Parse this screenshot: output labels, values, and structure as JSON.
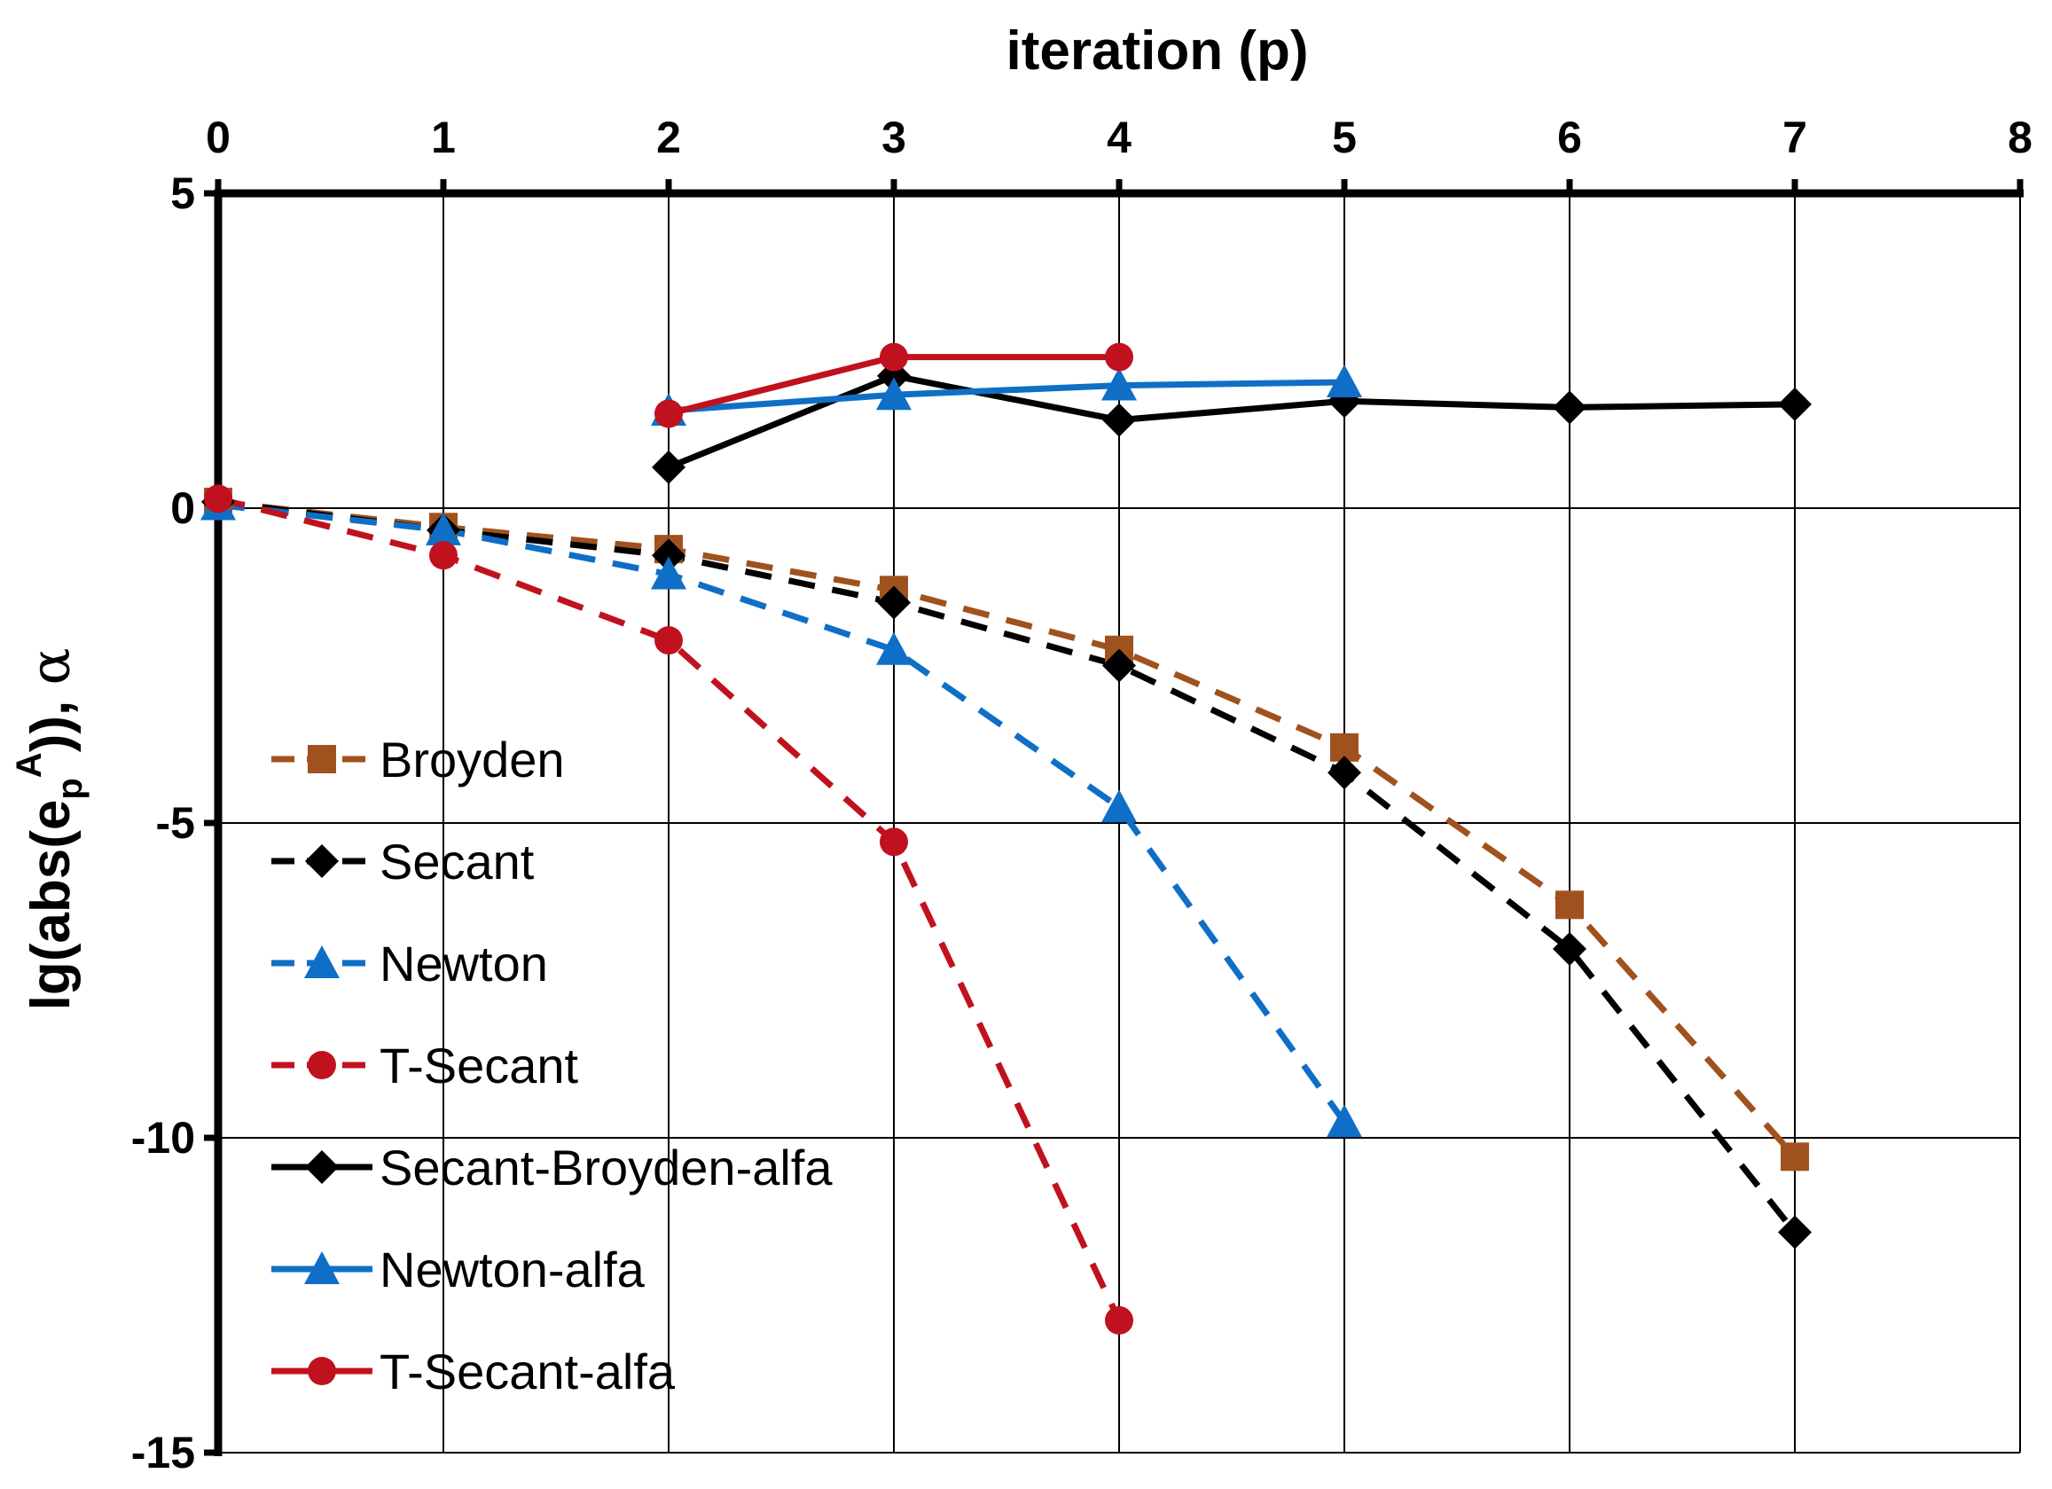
{
  "chart_data": {
    "type": "line",
    "title": "",
    "xlabel": "iteration (p)",
    "ylabel": {
      "prefix": "lg(abs(e",
      "subscript": "p",
      "superscript": "A",
      "suffix": ")), ",
      "greek": "α"
    },
    "xlim": [
      0,
      8
    ],
    "ylim": [
      -15,
      5
    ],
    "x_ticks": [
      0,
      1,
      2,
      3,
      4,
      5,
      6,
      7,
      8
    ],
    "y_ticks": [
      5,
      0,
      -5,
      -10,
      -15
    ],
    "grid": true,
    "x_axis_position": "top",
    "legend_position": "lower-left",
    "series": [
      {
        "name": "Broyden",
        "color": "#a0521e",
        "dash": true,
        "marker": "square",
        "x": [
          0,
          1,
          2,
          3,
          4,
          5,
          6,
          7
        ],
        "y": [
          0.1,
          -0.3,
          -0.65,
          -1.3,
          -2.25,
          -3.8,
          -6.3,
          -10.3
        ]
      },
      {
        "name": "Secant",
        "color": "#000000",
        "dash": true,
        "marker": "diamond",
        "x": [
          0,
          1,
          2,
          3,
          4,
          5,
          6,
          7
        ],
        "y": [
          0.1,
          -0.35,
          -0.75,
          -1.5,
          -2.5,
          -4.2,
          -7.0,
          -11.5
        ]
      },
      {
        "name": "Newton",
        "color": "#0f6fc6",
        "dash": true,
        "marker": "triangle",
        "x": [
          0,
          1,
          2,
          3,
          4,
          5
        ],
        "y": [
          0.05,
          -0.35,
          -1.05,
          -2.25,
          -4.75,
          -9.75
        ]
      },
      {
        "name": "T-Secant",
        "color": "#c0121e",
        "dash": true,
        "marker": "circle",
        "x": [
          0,
          1,
          2,
          3,
          4
        ],
        "y": [
          0.15,
          -0.75,
          -2.1,
          -5.3,
          -12.9
        ]
      },
      {
        "name": "Secant-Broyden-alfa",
        "color": "#000000",
        "dash": false,
        "marker": "diamond",
        "x": [
          2,
          3,
          4,
          5,
          6,
          7
        ],
        "y": [
          0.65,
          2.1,
          1.4,
          1.7,
          1.6,
          1.65
        ]
      },
      {
        "name": "Newton-alfa",
        "color": "#0f6fc6",
        "dash": false,
        "marker": "triangle",
        "x": [
          2,
          3,
          4,
          5
        ],
        "y": [
          1.55,
          1.8,
          1.95,
          2.0
        ]
      },
      {
        "name": "T-Secant-alfa",
        "color": "#c0121e",
        "dash": false,
        "marker": "circle",
        "x": [
          2,
          3,
          4
        ],
        "y": [
          1.5,
          2.4,
          2.4
        ]
      }
    ]
  }
}
